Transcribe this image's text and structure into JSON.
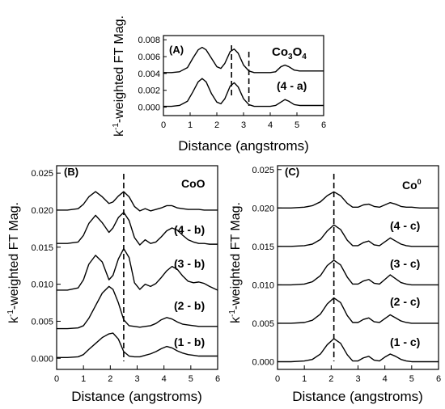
{
  "chart_data": [
    {
      "type": "line",
      "panel_label": "(A)",
      "reference_label_main": "Co",
      "reference_label_sub1": "3",
      "reference_label_mid": "O",
      "reference_label_sub2": "4",
      "xlabel": "Distance (angstroms)",
      "ylabel_prefix": "k",
      "ylabel_sup": "-1",
      "ylabel_rest": "-weighted FT Mag.",
      "xlim": [
        0,
        6
      ],
      "ylim": [
        -0.001,
        0.0085
      ],
      "xticks": [
        "0",
        "1",
        "2",
        "3",
        "4",
        "5",
        "6"
      ],
      "yticks": [
        "0.000",
        "0.002",
        "0.004",
        "0.006",
        "0.008"
      ],
      "dashed_lines_x": [
        2.55,
        3.2
      ],
      "series": [
        {
          "name": "Co3O4",
          "x": [
            0,
            0.3,
            0.6,
            0.9,
            1.1,
            1.3,
            1.45,
            1.6,
            1.8,
            2.0,
            2.15,
            2.3,
            2.5,
            2.65,
            2.8,
            3.0,
            3.2,
            3.4,
            3.6,
            3.8,
            4.0,
            4.2,
            4.4,
            4.55,
            4.7,
            4.9,
            5.1,
            5.4,
            5.7,
            6.0
          ],
          "y": [
            0.0041,
            0.0041,
            0.0042,
            0.0047,
            0.0058,
            0.0068,
            0.0071,
            0.0068,
            0.0058,
            0.0048,
            0.0046,
            0.0052,
            0.0066,
            0.0069,
            0.0064,
            0.005,
            0.0043,
            0.0041,
            0.0041,
            0.0041,
            0.0041,
            0.0042,
            0.0048,
            0.005,
            0.0048,
            0.0044,
            0.0043,
            0.0043,
            0.0043,
            0.0043
          ]
        },
        {
          "name": "(4 - a)",
          "x": [
            0,
            0.3,
            0.6,
            0.9,
            1.1,
            1.3,
            1.45,
            1.6,
            1.8,
            2.0,
            2.15,
            2.3,
            2.5,
            2.65,
            2.8,
            3.0,
            3.2,
            3.4,
            3.6,
            3.8,
            4.0,
            4.2,
            4.4,
            4.55,
            4.7,
            4.9,
            5.1,
            5.4,
            5.7,
            6.0
          ],
          "y": [
            0.0001,
            0.0001,
            0.0002,
            0.0007,
            0.0018,
            0.003,
            0.0034,
            0.003,
            0.0016,
            0.0006,
            0.0004,
            0.001,
            0.0025,
            0.0029,
            0.0024,
            0.001,
            0.0003,
            0.0001,
            0.0001,
            0.0001,
            0.0001,
            0.0002,
            0.0006,
            0.0009,
            0.0007,
            0.0003,
            0.0002,
            0.0002,
            0.0002,
            0.0002
          ]
        }
      ]
    },
    {
      "type": "line",
      "panel_label": "(B)",
      "reference_label": "CoO",
      "xlabel": "Distance (angstroms)",
      "ylabel_prefix": "k",
      "ylabel_sup": "-1",
      "ylabel_rest": "-weighted FT Mag.",
      "xlim": [
        0,
        6
      ],
      "ylim": [
        -0.0015,
        0.026
      ],
      "xticks": [
        "0",
        "1",
        "2",
        "3",
        "4",
        "5",
        "6"
      ],
      "yticks": [
        "0.000",
        "0.005",
        "0.010",
        "0.015",
        "0.020",
        "0.025"
      ],
      "dashed_lines_x": [
        2.5
      ],
      "series": [
        {
          "name": "CoO",
          "x": [
            0,
            0.4,
            0.8,
            1.0,
            1.2,
            1.45,
            1.7,
            1.95,
            2.1,
            2.3,
            2.5,
            2.7,
            2.9,
            3.1,
            3.3,
            3.5,
            3.7,
            3.9,
            4.1,
            4.3,
            4.5,
            4.7,
            4.9,
            5.1,
            5.3,
            5.5,
            5.7,
            6.0
          ],
          "y": [
            0.02,
            0.02,
            0.0202,
            0.0208,
            0.0218,
            0.0225,
            0.0218,
            0.0209,
            0.0211,
            0.0219,
            0.0225,
            0.0218,
            0.0205,
            0.0199,
            0.0202,
            0.0199,
            0.0201,
            0.0203,
            0.0206,
            0.0206,
            0.0203,
            0.0202,
            0.0201,
            0.0201,
            0.0201,
            0.02,
            0.02,
            0.02
          ]
        },
        {
          "name": "(4 - b)",
          "x": [
            0,
            0.4,
            0.8,
            1.0,
            1.2,
            1.45,
            1.7,
            1.95,
            2.1,
            2.3,
            2.5,
            2.7,
            2.9,
            3.1,
            3.3,
            3.5,
            3.7,
            3.9,
            4.1,
            4.3,
            4.5,
            4.7,
            4.9,
            5.1,
            5.3,
            5.5,
            5.7,
            6.0
          ],
          "y": [
            0.0155,
            0.0155,
            0.0157,
            0.0166,
            0.0182,
            0.0193,
            0.0183,
            0.017,
            0.0176,
            0.019,
            0.0197,
            0.0186,
            0.0163,
            0.0153,
            0.016,
            0.0155,
            0.0157,
            0.0164,
            0.0172,
            0.0176,
            0.0173,
            0.0166,
            0.016,
            0.0157,
            0.0155,
            0.0155,
            0.0154,
            0.0154
          ]
        },
        {
          "name": "(3 - b)",
          "x": [
            0,
            0.4,
            0.8,
            1.0,
            1.2,
            1.45,
            1.7,
            1.95,
            2.1,
            2.3,
            2.5,
            2.7,
            2.9,
            3.1,
            3.3,
            3.5,
            3.7,
            3.9,
            4.1,
            4.3,
            4.5,
            4.7,
            4.9,
            5.1,
            5.3,
            5.5,
            5.7,
            6.0
          ],
          "y": [
            0.0092,
            0.0092,
            0.0095,
            0.0106,
            0.0127,
            0.0139,
            0.013,
            0.0106,
            0.0112,
            0.0134,
            0.0148,
            0.0136,
            0.0102,
            0.0093,
            0.01,
            0.0097,
            0.0101,
            0.0109,
            0.0118,
            0.0124,
            0.012,
            0.0111,
            0.0104,
            0.0102,
            0.0103,
            0.0101,
            0.0097,
            0.0092
          ]
        },
        {
          "name": "(2 - b)",
          "x": [
            0,
            0.4,
            0.8,
            1.0,
            1.2,
            1.45,
            1.7,
            1.95,
            2.1,
            2.3,
            2.5,
            2.7,
            2.9,
            3.1,
            3.3,
            3.5,
            3.7,
            3.9,
            4.1,
            4.3,
            4.5,
            4.7,
            4.9,
            5.1,
            5.3,
            5.5,
            5.7,
            6.0
          ],
          "y": [
            0.004,
            0.004,
            0.0041,
            0.0044,
            0.0054,
            0.0071,
            0.0088,
            0.0097,
            0.0093,
            0.0075,
            0.0052,
            0.0044,
            0.0043,
            0.0042,
            0.0043,
            0.0044,
            0.0047,
            0.0052,
            0.0055,
            0.0053,
            0.0049,
            0.0046,
            0.0045,
            0.0044,
            0.0043,
            0.0043,
            0.0043,
            0.0043
          ]
        },
        {
          "name": "(1 - b)",
          "x": [
            0,
            0.4,
            0.8,
            1.0,
            1.2,
            1.45,
            1.7,
            1.95,
            2.1,
            2.3,
            2.5,
            2.7,
            2.9,
            3.1,
            3.3,
            3.5,
            3.7,
            3.9,
            4.1,
            4.3,
            4.5,
            4.7,
            4.9,
            5.1,
            5.3,
            5.5,
            5.7,
            6.0
          ],
          "y": [
            0.0001,
            0.0001,
            0.0002,
            0.0005,
            0.0012,
            0.002,
            0.0028,
            0.0033,
            0.0034,
            0.0026,
            0.0009,
            0.0003,
            0.0002,
            0.0002,
            0.0004,
            0.0006,
            0.0009,
            0.0013,
            0.0016,
            0.0014,
            0.001,
            0.0007,
            0.0005,
            0.0004,
            0.0003,
            0.0003,
            0.0003,
            0.0003
          ]
        }
      ]
    },
    {
      "type": "line",
      "panel_label": "(C)",
      "reference_label_main": "Co",
      "reference_label_sup": "0",
      "xlabel": "Distance (angstroms)",
      "ylabel_prefix": "k",
      "ylabel_sup": "-1",
      "ylabel_rest": "-weighted FT Mag.",
      "xlim": [
        0,
        6
      ],
      "ylim": [
        -0.001,
        0.0255
      ],
      "xticks": [
        "0",
        "1",
        "2",
        "3",
        "4",
        "5",
        "6"
      ],
      "yticks": [
        "0.000",
        "0.005",
        "0.010",
        "0.015",
        "0.020",
        "0.025"
      ],
      "dashed_lines_x": [
        2.1
      ],
      "series": [
        {
          "name": "Co0",
          "x": [
            0,
            0.5,
            1.0,
            1.3,
            1.6,
            1.85,
            2.1,
            2.35,
            2.6,
            2.8,
            3.0,
            3.2,
            3.4,
            3.6,
            3.8,
            4.0,
            4.2,
            4.4,
            4.6,
            4.8,
            5.0,
            5.3,
            5.6,
            6.0
          ],
          "y": [
            0.02,
            0.02,
            0.0201,
            0.0203,
            0.0208,
            0.0216,
            0.0221,
            0.0216,
            0.0206,
            0.0201,
            0.0201,
            0.0204,
            0.0205,
            0.0202,
            0.0201,
            0.0204,
            0.0207,
            0.0205,
            0.0202,
            0.0201,
            0.0201,
            0.02,
            0.02,
            0.02
          ]
        },
        {
          "name": "(4 - c)",
          "x": [
            0,
            0.5,
            1.0,
            1.3,
            1.6,
            1.85,
            2.1,
            2.35,
            2.6,
            2.8,
            3.0,
            3.2,
            3.4,
            3.6,
            3.8,
            4.0,
            4.2,
            4.4,
            4.6,
            4.8,
            5.0,
            5.3,
            5.6,
            6.0
          ],
          "y": [
            0.015,
            0.015,
            0.0151,
            0.0153,
            0.0159,
            0.017,
            0.0178,
            0.0172,
            0.0158,
            0.0151,
            0.0151,
            0.0155,
            0.0157,
            0.0152,
            0.0151,
            0.0156,
            0.0161,
            0.0157,
            0.0153,
            0.0151,
            0.015,
            0.015,
            0.015,
            0.015
          ]
        },
        {
          "name": "(3 - c)",
          "x": [
            0,
            0.5,
            1.0,
            1.3,
            1.6,
            1.85,
            2.1,
            2.35,
            2.6,
            2.8,
            3.0,
            3.2,
            3.4,
            3.6,
            3.8,
            4.0,
            4.2,
            4.4,
            4.6,
            4.8,
            5.0,
            5.3,
            5.6,
            6.0
          ],
          "y": [
            0.01,
            0.01,
            0.0101,
            0.0104,
            0.0112,
            0.0125,
            0.0132,
            0.0126,
            0.011,
            0.0101,
            0.0101,
            0.0105,
            0.0107,
            0.0102,
            0.0101,
            0.0107,
            0.0113,
            0.0108,
            0.0103,
            0.0101,
            0.01,
            0.01,
            0.01,
            0.01
          ]
        },
        {
          "name": "(2 - c)",
          "x": [
            0,
            0.5,
            1.0,
            1.3,
            1.6,
            1.85,
            2.1,
            2.35,
            2.6,
            2.8,
            3.0,
            3.2,
            3.4,
            3.6,
            3.8,
            4.0,
            4.2,
            4.4,
            4.6,
            4.8,
            5.0,
            5.3,
            5.6,
            6.0
          ],
          "y": [
            0.005,
            0.005,
            0.0051,
            0.0054,
            0.0062,
            0.0075,
            0.0083,
            0.0077,
            0.006,
            0.0051,
            0.0051,
            0.0055,
            0.0057,
            0.0052,
            0.0051,
            0.0056,
            0.0061,
            0.0057,
            0.0053,
            0.0051,
            0.005,
            0.005,
            0.005,
            0.005
          ]
        },
        {
          "name": "(1 - c)",
          "x": [
            0,
            0.5,
            1.0,
            1.3,
            1.6,
            1.85,
            2.1,
            2.35,
            2.6,
            2.8,
            3.0,
            3.2,
            3.4,
            3.6,
            3.8,
            4.0,
            4.2,
            4.4,
            4.6,
            4.8,
            5.0,
            5.3,
            5.6,
            6.0
          ],
          "y": [
            0.0,
            0.0,
            0.0001,
            0.0003,
            0.001,
            0.0022,
            0.003,
            0.0024,
            0.0009,
            0.0001,
            0.0001,
            0.0005,
            0.0007,
            0.0002,
            0.0001,
            0.0006,
            0.001,
            0.0007,
            0.0003,
            0.0001,
            0.0,
            0.0,
            0.0,
            0.0
          ]
        }
      ]
    }
  ]
}
